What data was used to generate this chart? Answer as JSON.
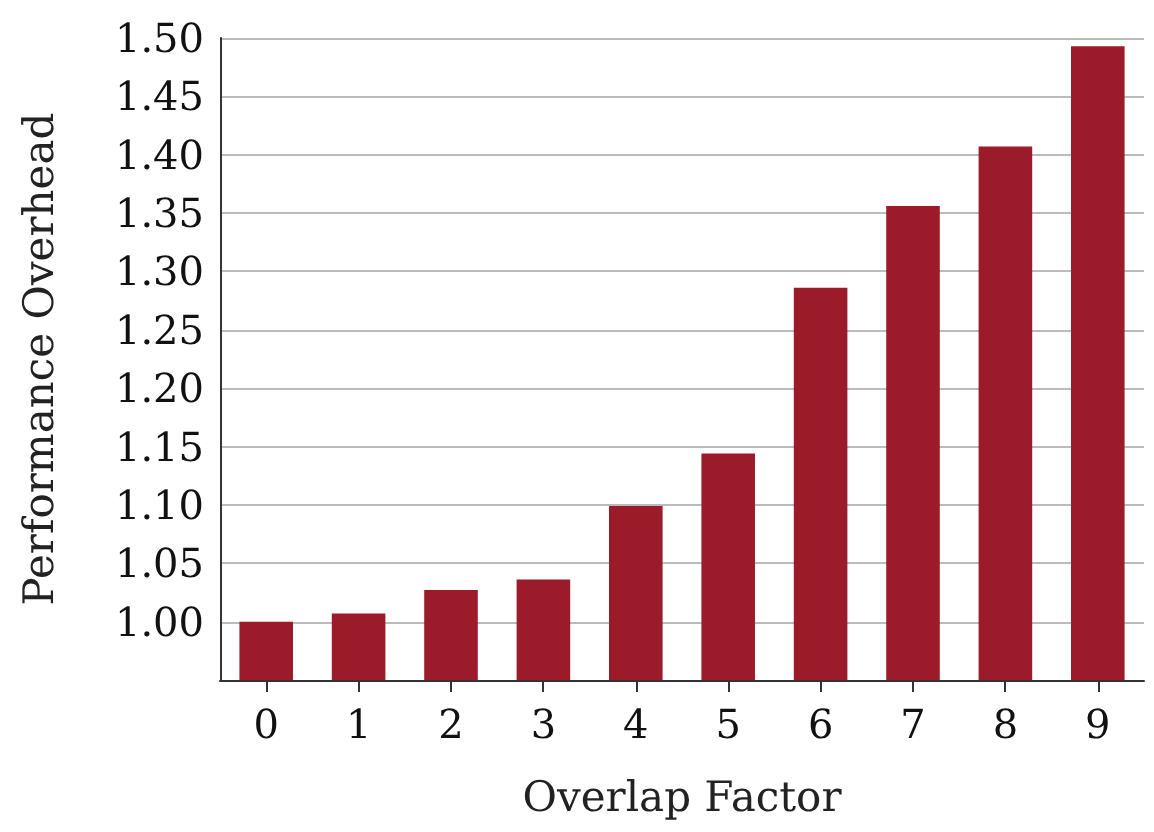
{
  "chart_data": {
    "type": "bar",
    "xlabel": "Overlap Factor",
    "ylabel": "Performance Overhead",
    "categories": [
      "0",
      "1",
      "2",
      "3",
      "4",
      "5",
      "6",
      "7",
      "8",
      "9"
    ],
    "values": [
      1.0,
      1.007,
      1.027,
      1.036,
      1.099,
      1.144,
      1.286,
      1.356,
      1.407,
      1.493
    ],
    "color": "#9b1b2a",
    "ylim": [
      0.95,
      1.5
    ],
    "yticks": [
      {
        "value": 1.0,
        "label": "1.00"
      },
      {
        "value": 1.05,
        "label": "1.05"
      },
      {
        "value": 1.1,
        "label": "1.10"
      },
      {
        "value": 1.15,
        "label": "1.15"
      },
      {
        "value": 1.2,
        "label": "1.20"
      },
      {
        "value": 1.25,
        "label": "1.25"
      },
      {
        "value": 1.3,
        "label": "1.30"
      },
      {
        "value": 1.35,
        "label": "1.35"
      },
      {
        "value": 1.4,
        "label": "1.40"
      },
      {
        "value": 1.45,
        "label": "1.45"
      },
      {
        "value": 1.5,
        "label": "1.50"
      }
    ],
    "grid": "y"
  }
}
